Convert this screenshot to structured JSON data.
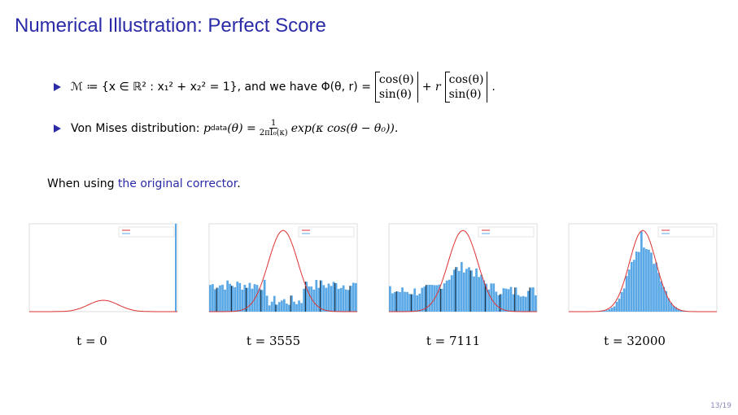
{
  "header": {
    "title": "Numerical Illustration: Perfect Score"
  },
  "bullets": [
    {
      "lead": "ℳ ≔ {x ∈ ℝ² : x₁² + x₂² = 1}, and we have Φ(θ, r) =",
      "middle": "+ r",
      "end": ".",
      "matrices": [
        [
          "cos(θ)",
          "sin(θ)"
        ],
        [
          "cos(θ)",
          "sin(θ)"
        ]
      ]
    },
    {
      "lead": "Von Mises distribution:",
      "symbol": "p",
      "subscript": "data",
      "equals": "(θ) =",
      "numerator": "1",
      "denominator": "2πI₀(κ)",
      "tail": "exp(κ cos(θ − θ₀))."
    }
  ],
  "note": {
    "before": "When using",
    "link": "the original corrector",
    "after": "."
  },
  "captions": [
    "t = 0",
    "t = 3555",
    "t = 7111",
    "t = 32000"
  ],
  "footer": {
    "page": "13/19"
  }
}
